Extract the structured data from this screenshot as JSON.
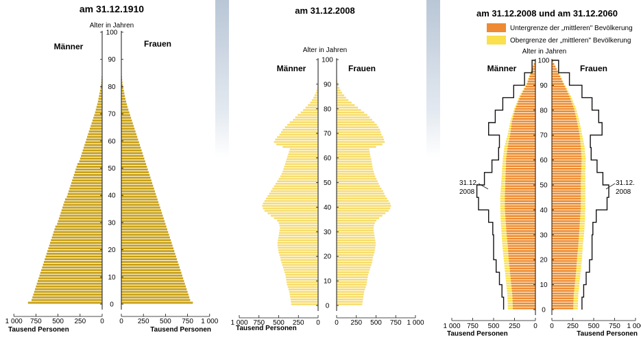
{
  "colors": {
    "p1910": "#c9a21a",
    "p2008": "#f7dc6b",
    "low2060": "#ee8a33",
    "high2060": "#fbe04d",
    "line2008": "#111111"
  },
  "chart_data": [
    {
      "type": "bar",
      "subtype": "population-pyramid",
      "title": "am 31.12.1910",
      "ylabel": "Alter in Jahren",
      "xlabel": "Tausend Personen",
      "left_label": "Männer",
      "right_label": "Frauen",
      "ylim": [
        0,
        100
      ],
      "xlim": [
        0,
        1000
      ],
      "y_ticks": [
        0,
        10,
        20,
        30,
        40,
        50,
        60,
        70,
        80,
        90,
        100
      ],
      "x_ticks_left": [
        "1 000",
        "750",
        "500",
        "250",
        "0"
      ],
      "x_ticks_right": [
        "0",
        "250",
        "500",
        "750",
        "1 000"
      ],
      "age_step": 1,
      "maenner": [
        840,
        800,
        790,
        780,
        770,
        760,
        750,
        740,
        730,
        720,
        710,
        700,
        690,
        680,
        670,
        660,
        650,
        640,
        630,
        620,
        610,
        600,
        590,
        580,
        570,
        560,
        550,
        540,
        530,
        510,
        500,
        490,
        480,
        470,
        460,
        450,
        440,
        430,
        420,
        400,
        390,
        380,
        370,
        360,
        350,
        340,
        330,
        320,
        310,
        300,
        290,
        280,
        260,
        250,
        240,
        230,
        220,
        210,
        200,
        190,
        180,
        170,
        160,
        150,
        140,
        130,
        120,
        110,
        100,
        90,
        80,
        72,
        64,
        56,
        48,
        42,
        36,
        30,
        24,
        18,
        14,
        10,
        8,
        6,
        4,
        3,
        2,
        1,
        1,
        0,
        0
      ],
      "frauen": [
        810,
        780,
        770,
        760,
        750,
        740,
        730,
        720,
        710,
        700,
        690,
        680,
        670,
        660,
        650,
        640,
        630,
        620,
        610,
        600,
        590,
        580,
        570,
        560,
        550,
        540,
        530,
        520,
        510,
        500,
        490,
        480,
        470,
        460,
        450,
        440,
        430,
        420,
        410,
        400,
        390,
        380,
        370,
        360,
        350,
        340,
        330,
        320,
        310,
        300,
        290,
        280,
        270,
        260,
        250,
        240,
        230,
        220,
        210,
        200,
        190,
        180,
        170,
        160,
        150,
        140,
        130,
        120,
        110,
        100,
        90,
        80,
        70,
        62,
        54,
        46,
        40,
        34,
        28,
        22,
        16,
        12,
        9,
        6,
        4,
        3,
        2,
        1,
        1,
        0,
        0
      ]
    },
    {
      "type": "bar",
      "subtype": "population-pyramid",
      "title": "am 31.12.2008",
      "ylabel": "Alter in Jahren",
      "xlabel": "Tausend Personen",
      "left_label": "Männer",
      "right_label": "Frauen",
      "ylim": [
        0,
        100
      ],
      "xlim": [
        0,
        1000
      ],
      "y_ticks": [
        0,
        10,
        20,
        30,
        40,
        50,
        60,
        70,
        80,
        90,
        100
      ],
      "x_ticks_left": [
        "1 000",
        "750",
        "500",
        "250",
        "0"
      ],
      "x_ticks_right": [
        "0",
        "250",
        "500",
        "750",
        "1 000"
      ],
      "age_step": 1,
      "maenner": [
        340,
        345,
        350,
        355,
        360,
        365,
        375,
        385,
        395,
        400,
        405,
        410,
        415,
        425,
        435,
        445,
        455,
        465,
        475,
        480,
        490,
        500,
        505,
        510,
        515,
        515,
        510,
        505,
        500,
        495,
        490,
        485,
        490,
        500,
        520,
        560,
        600,
        640,
        680,
        700,
        710,
        700,
        680,
        660,
        640,
        620,
        600,
        580,
        560,
        540,
        520,
        500,
        480,
        465,
        450,
        440,
        430,
        420,
        410,
        400,
        390,
        380,
        370,
        360,
        450,
        530,
        560,
        545,
        520,
        490,
        470,
        450,
        420,
        390,
        360,
        320,
        290,
        260,
        220,
        190,
        160,
        130,
        100,
        80,
        60,
        45,
        30,
        20,
        12,
        7,
        4,
        2,
        1,
        1,
        0,
        0,
        0,
        0,
        0,
        0,
        0
      ],
      "frauen": [
        325,
        330,
        335,
        340,
        345,
        350,
        360,
        370,
        380,
        385,
        390,
        395,
        400,
        410,
        420,
        430,
        440,
        450,
        455,
        460,
        470,
        480,
        485,
        490,
        495,
        495,
        490,
        485,
        480,
        475,
        470,
        470,
        475,
        485,
        505,
        540,
        580,
        620,
        660,
        680,
        690,
        680,
        660,
        640,
        620,
        605,
        590,
        570,
        550,
        535,
        520,
        505,
        490,
        480,
        470,
        460,
        455,
        450,
        445,
        440,
        430,
        425,
        420,
        415,
        500,
        580,
        610,
        600,
        590,
        570,
        560,
        550,
        530,
        510,
        480,
        450,
        420,
        390,
        350,
        310,
        270,
        230,
        190,
        150,
        120,
        95,
        70,
        50,
        35,
        22,
        14,
        8,
        5,
        3,
        2,
        1,
        0,
        0,
        0,
        0,
        0
      ]
    },
    {
      "type": "bar",
      "subtype": "population-pyramid",
      "title": "am 31.12.2008 und am 31.12.2060",
      "ylabel": "Alter in Jahren",
      "xlabel": "Tausend Personen",
      "left_label": "Männer",
      "right_label": "Frauen",
      "ylim": [
        0,
        100
      ],
      "xlim": [
        0,
        1000
      ],
      "y_ticks": [
        0,
        10,
        20,
        30,
        40,
        50,
        60,
        70,
        80,
        90,
        100
      ],
      "x_ticks_left": [
        "1 000",
        "750",
        "500",
        "250",
        "0"
      ],
      "x_ticks_right": [
        "0",
        "250",
        "500",
        "750",
        "1 000"
      ],
      "legend": [
        {
          "label": "Untergrenze der „mittleren\" Bevölkerung",
          "color": "#ee8a33"
        },
        {
          "label": "Obergrenze der „mittleren\" Bevölkerung",
          "color": "#fbe04d"
        }
      ],
      "annotation_left": [
        "31.12.",
        "2008"
      ],
      "annotation_right": [
        "31.12.",
        "2008"
      ],
      "age_step": 5,
      "untergrenze_maenner": [
        270,
        275,
        290,
        305,
        320,
        330,
        345,
        355,
        365,
        365,
        360,
        355,
        350,
        330,
        300,
        280,
        240,
        180,
        100,
        50,
        0
      ],
      "untergrenze_frauen": [
        255,
        260,
        275,
        290,
        300,
        315,
        325,
        335,
        345,
        345,
        345,
        350,
        355,
        345,
        330,
        300,
        265,
        210,
        140,
        70,
        0
      ],
      "obergrenze_maenner": [
        330,
        335,
        350,
        365,
        380,
        395,
        405,
        415,
        420,
        420,
        410,
        400,
        390,
        370,
        330,
        300,
        255,
        195,
        110,
        55,
        0
      ],
      "obergrenze_frauen": [
        310,
        315,
        330,
        345,
        360,
        370,
        385,
        395,
        400,
        400,
        400,
        400,
        405,
        390,
        360,
        330,
        290,
        230,
        150,
        75,
        0
      ],
      "linie_2008_maenner": [
        380,
        400,
        430,
        470,
        500,
        500,
        510,
        560,
        680,
        700,
        610,
        520,
        440,
        430,
        560,
        480,
        390,
        260,
        130,
        40,
        0
      ],
      "linie_2008_frauen": [
        360,
        380,
        410,
        450,
        480,
        480,
        490,
        530,
        660,
        680,
        610,
        540,
        470,
        460,
        600,
        560,
        480,
        360,
        210,
        80,
        0
      ]
    }
  ]
}
